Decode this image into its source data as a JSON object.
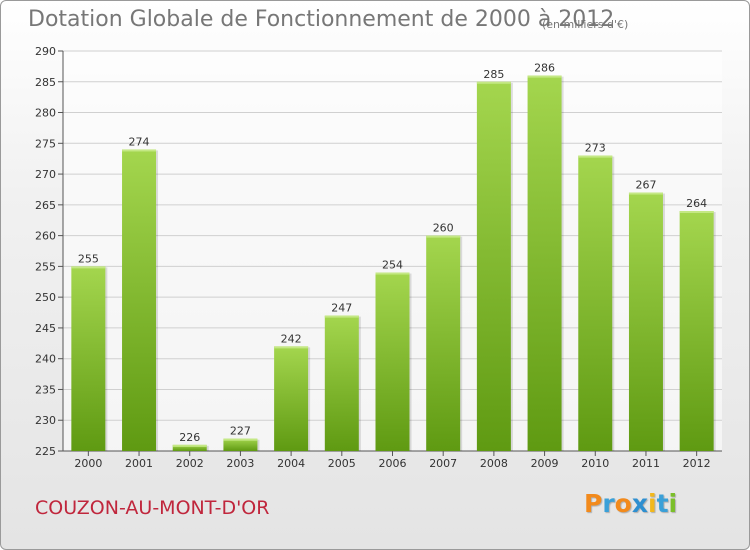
{
  "chart_data": {
    "type": "bar",
    "title": "Dotation Globale de Fonctionnement de 2000 à 2012",
    "subtitle": "(en milliers d'€)",
    "categories": [
      "2000",
      "2001",
      "2002",
      "2003",
      "2004",
      "2005",
      "2006",
      "2007",
      "2008",
      "2009",
      "2010",
      "2011",
      "2012"
    ],
    "values": [
      255,
      274,
      226,
      227,
      242,
      247,
      254,
      260,
      285,
      286,
      273,
      267,
      264
    ],
    "ylim": [
      225,
      290
    ],
    "yticks": [
      225,
      230,
      235,
      240,
      245,
      250,
      255,
      260,
      265,
      270,
      275,
      280,
      285,
      290
    ],
    "grid": true,
    "colors": {
      "bar_light": "#9fd24a",
      "bar_dark": "#5f9a12",
      "grid": "#d0d0d0"
    }
  },
  "footer": {
    "commune": "COUZON-AU-MONT-D'OR"
  },
  "logo": {
    "letters": [
      "P",
      "r",
      "o",
      "x",
      "i",
      "t",
      "i"
    ],
    "colors": [
      "#f28a1c",
      "#3aa0d8",
      "#f28a1c",
      "#2e8fd0",
      "#f2b81c",
      "#3aa0d8",
      "#7bbf2a"
    ]
  }
}
